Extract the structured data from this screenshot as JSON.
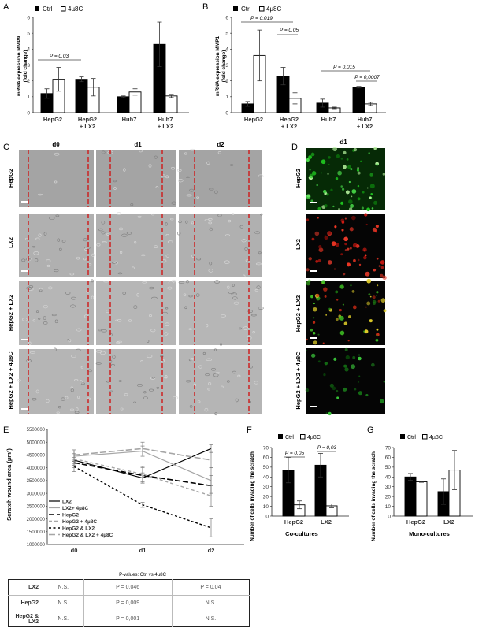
{
  "panels": {
    "A": {
      "letter": "A",
      "legend": [
        "Ctrl",
        "4µ8C"
      ],
      "ylabel_lines": [
        "mRNA expression MMP9",
        "(fold change)"
      ],
      "yticks": [
        "0",
        "1",
        "2",
        "3",
        "4",
        "5",
        "6"
      ],
      "categories": [
        [
          "HepG2"
        ],
        [
          "HepG2",
          "+ LX2"
        ],
        [
          "Huh7"
        ],
        [
          "Huh7",
          "+ LX2"
        ]
      ],
      "annotation": "P = 0,03"
    },
    "B": {
      "letter": "B",
      "legend": [
        "Ctrl",
        "4µ8C"
      ],
      "ylabel_lines": [
        "mRNA expression MMP1",
        "(fold change)"
      ],
      "yticks": [
        "0",
        "1",
        "2",
        "3",
        "4",
        "5",
        "6"
      ],
      "categories": [
        [
          "HepG2"
        ],
        [
          "HepG2",
          "+ LX2"
        ],
        [
          "Huh7"
        ],
        [
          "Huh7",
          "+ LX2"
        ]
      ],
      "annotations": [
        "P = 0,019",
        "P = 0,05",
        "P = 0,015",
        "P = 0,0007"
      ]
    },
    "C": {
      "letter": "C",
      "columns": [
        "d0",
        "d1",
        "d2"
      ],
      "rows": [
        "HepG2",
        "LX2",
        "HepG2 + LX2",
        "HepG2 + LX2 + 4µ8C"
      ]
    },
    "D": {
      "letter": "D",
      "column": "d1",
      "rows": [
        "HepG2",
        "LX2",
        "HepG2 + LX2",
        "HepG2 + LX2 + 4µ8C"
      ]
    },
    "E": {
      "letter": "E",
      "ylabel": "Scratch wound area (µm²)",
      "yticks": [
        "1000000",
        "1500000",
        "2000000",
        "2500000",
        "3000000",
        "3500000",
        "4000000",
        "4500000",
        "5000000",
        "5500000"
      ],
      "xticks": [
        "d0",
        "d1",
        "d2"
      ],
      "legend": [
        "LX2",
        "LX2+ 4µ8C",
        "HepG2",
        "HepG2 + 4µ8C",
        "HepG2 & LX2",
        "HepG2 & LX2 + 4µ8C"
      ],
      "pvalue_title": "P-values: Ctrl vs 4µ8C",
      "pvalue_rows": [
        {
          "label": "LX2",
          "d0": "N.S.",
          "d1": "P = 0,046",
          "d2": "P = 0,04"
        },
        {
          "label": "HepG2",
          "d0": "N.S.",
          "d1": "P = 0,009",
          "d2": "N.S."
        },
        {
          "label": "HepG2 & LX2",
          "d0": "N.S.",
          "d1": "P = 0,001",
          "d2": "N.S."
        }
      ]
    },
    "F": {
      "letter": "F",
      "legend": [
        "Ctrl",
        "4µ8C"
      ],
      "ylabel": "Number of cells invading the scratch",
      "yticks": [
        "0",
        "10",
        "20",
        "30",
        "40",
        "50",
        "60",
        "70"
      ],
      "categories": [
        "HepG2",
        "LX2"
      ],
      "xlabel": "Co-cultures",
      "annotations": [
        "P = 0,05",
        "P = 0,03"
      ]
    },
    "G": {
      "letter": "G",
      "legend": [
        "Ctrl",
        "4µ8C"
      ],
      "ylabel": "Number of cells invading the scratch",
      "yticks": [
        "0",
        "10",
        "20",
        "30",
        "40",
        "50",
        "60",
        "70"
      ],
      "categories": [
        "HepG2",
        "LX2"
      ],
      "xlabel": "Mono-cultures"
    }
  },
  "chart_data": [
    {
      "panel": "A",
      "type": "bar",
      "categories": [
        "HepG2",
        "HepG2 + LX2",
        "Huh7",
        "Huh7 + LX2"
      ],
      "ylabel": "mRNA expression MMP9 (fold change)",
      "ylim": [
        0,
        6
      ],
      "series": [
        {
          "name": "Ctrl",
          "values": [
            1.2,
            2.1,
            1.0,
            4.3
          ],
          "errors": [
            0.3,
            0.15,
            0.05,
            1.4
          ]
        },
        {
          "name": "4µ8C",
          "values": [
            2.1,
            1.6,
            1.3,
            1.05
          ],
          "errors": [
            0.75,
            0.55,
            0.2,
            0.1
          ]
        }
      ]
    },
    {
      "panel": "B",
      "type": "bar",
      "categories": [
        "HepG2",
        "HepG2 + LX2",
        "Huh7",
        "Huh7 + LX2"
      ],
      "ylabel": "mRNA expression MMP1 (fold change)",
      "ylim": [
        0,
        6
      ],
      "series": [
        {
          "name": "Ctrl",
          "values": [
            0.55,
            2.3,
            0.6,
            1.6
          ],
          "errors": [
            0.15,
            0.55,
            0.25,
            0.05
          ]
        },
        {
          "name": "4µ8C",
          "values": [
            3.6,
            0.9,
            0.3,
            0.55
          ],
          "errors": [
            1.6,
            0.35,
            0.05,
            0.1
          ]
        }
      ]
    },
    {
      "panel": "E",
      "type": "line",
      "x": [
        "d0",
        "d1",
        "d2"
      ],
      "ylabel": "Scratch wound area (µm²)",
      "ylim": [
        1000000,
        5500000
      ],
      "series": [
        {
          "name": "LX2",
          "values": [
            4300000,
            3600000,
            4750000
          ],
          "errors": [
            200000,
            200000,
            150000
          ]
        },
        {
          "name": "LX2+ 4µ8C",
          "values": [
            4450000,
            4650000,
            3500000
          ],
          "errors": [
            200000,
            200000,
            500000
          ]
        },
        {
          "name": "HepG2",
          "values": [
            4200000,
            3700000,
            3300000
          ],
          "errors": [
            200000,
            300000,
            400000
          ]
        },
        {
          "name": "HepG2 + 4µ8C",
          "values": [
            4350000,
            3750000,
            2900000
          ],
          "errors": [
            200000,
            300000,
            400000
          ]
        },
        {
          "name": "HepG2 & LX2",
          "values": [
            4050000,
            2550000,
            1650000
          ],
          "errors": [
            200000,
            100000,
            350000
          ]
        },
        {
          "name": "HepG2 & LX2 + 4µ8C",
          "values": [
            4500000,
            4750000,
            4300000
          ],
          "errors": [
            200000,
            250000,
            300000
          ]
        }
      ]
    },
    {
      "panel": "F",
      "type": "bar",
      "categories": [
        "HepG2",
        "LX2"
      ],
      "xlabel": "Co-cultures",
      "ylabel": "Number of cells invading the scratch",
      "ylim": [
        0,
        70
      ],
      "series": [
        {
          "name": "Ctrl",
          "values": [
            47,
            52
          ],
          "errors": [
            13,
            12
          ]
        },
        {
          "name": "4µ8C",
          "values": [
            11.5,
            10.5
          ],
          "errors": [
            4,
            2
          ]
        }
      ]
    },
    {
      "panel": "G",
      "type": "bar",
      "categories": [
        "HepG2",
        "LX2"
      ],
      "xlabel": "Mono-cultures",
      "ylabel": "Number of cells invading the scratch",
      "ylim": [
        0,
        70
      ],
      "series": [
        {
          "name": "Ctrl",
          "values": [
            40,
            25
          ],
          "errors": [
            3.5,
            13
          ]
        },
        {
          "name": "4µ8C",
          "values": [
            35,
            47
          ],
          "errors": [
            0.5,
            20
          ]
        }
      ]
    }
  ]
}
